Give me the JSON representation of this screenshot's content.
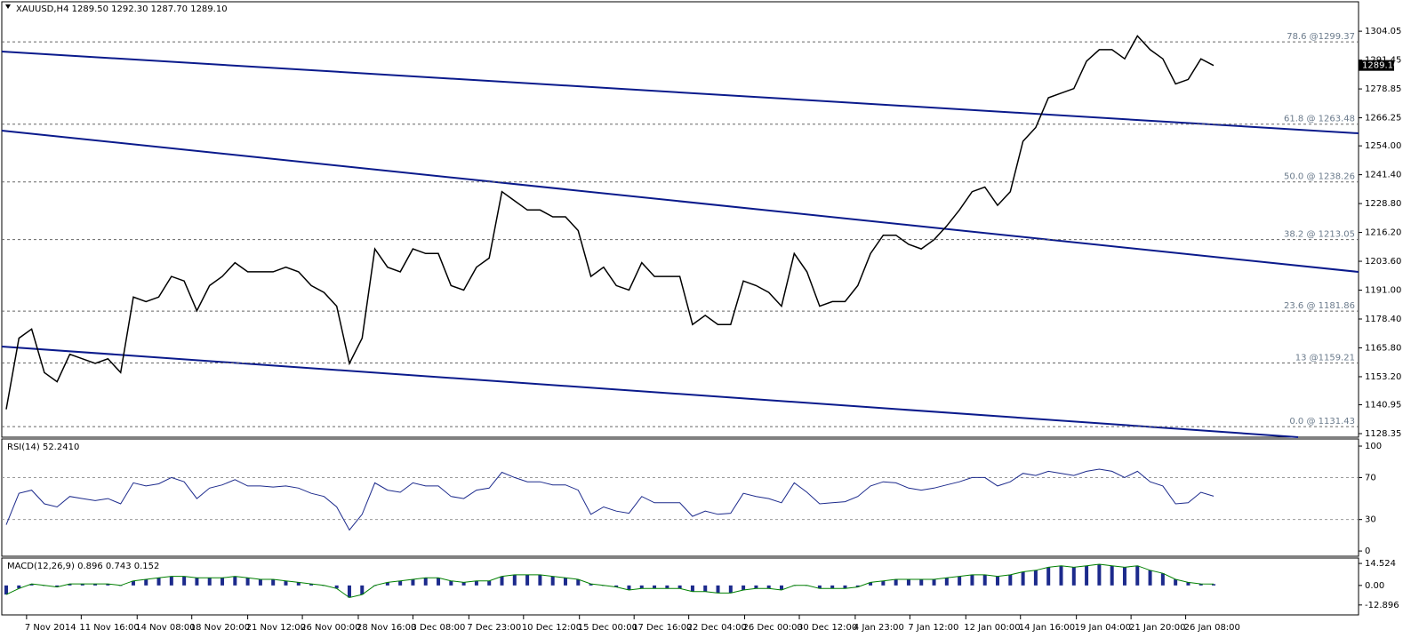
{
  "chart_data": [
    {
      "type": "line",
      "panel": "price",
      "title": "XAUUSD,H4  1289.50 1292.30 1287.70 1289.10",
      "color": "#000000",
      "xlim": [
        -0.35,
        106.4
      ],
      "xticks": [
        {
          "value": 1.6,
          "label": "7 Nov 2014"
        },
        {
          "value": 5.9,
          "label": "11 Nov 16:00"
        },
        {
          "value": 10.3,
          "label": "14 Nov 08:00"
        },
        {
          "value": 14.6,
          "label": "18 Nov 20:00"
        },
        {
          "value": 19.0,
          "label": "21 Nov 12:00"
        },
        {
          "value": 23.3,
          "label": "26 Nov 00:00"
        },
        {
          "value": 27.7,
          "label": "28 Nov 16:00"
        },
        {
          "value": 32.0,
          "label": "3 Dec 08:00"
        },
        {
          "value": 36.4,
          "label": "7 Dec 23:00"
        },
        {
          "value": 40.7,
          "label": "10 Dec 12:00"
        },
        {
          "value": 45.1,
          "label": "15 Dec 00:00"
        },
        {
          "value": 49.4,
          "label": "17 Dec 16:00"
        },
        {
          "value": 53.7,
          "label": "22 Dec 04:00"
        },
        {
          "value": 58.1,
          "label": "26 Dec 00:00"
        },
        {
          "value": 62.4,
          "label": "30 Dec 12:00"
        },
        {
          "value": 66.8,
          "label": "4 Jan 23:00"
        },
        {
          "value": 71.1,
          "label": "7 Jan 12:00"
        },
        {
          "value": 75.5,
          "label": "12 Jan 00:00"
        },
        {
          "value": 79.8,
          "label": "14 Jan 16:00"
        },
        {
          "value": 84.2,
          "label": "19 Jan 04:00"
        },
        {
          "value": 88.5,
          "label": "21 Jan 20:00"
        },
        {
          "value": 92.8,
          "label": "26 Jan 08:00"
        }
      ],
      "ylim": [
        1126.8,
        1316.9
      ],
      "yticks": [
        1304.05,
        1291.45,
        1278.85,
        1266.25,
        {
          "value": 1254,
          "label": "1254.00"
        },
        {
          "value": 1241.4,
          "label": "1241.40"
        },
        {
          "value": 1228.8,
          "label": "1228.80"
        },
        {
          "value": 1216.2,
          "label": "1216.20"
        },
        {
          "value": 1203.6,
          "label": "1203.60"
        },
        {
          "value": 1191,
          "label": "1191.00"
        },
        {
          "value": 1178.4,
          "label": "1178.40"
        },
        {
          "value": 1165.8,
          "label": "1165.80"
        },
        {
          "value": 1153.2,
          "label": "1153.20"
        },
        1140.95,
        1128.35
      ],
      "current_price": {
        "value": 1289.1,
        "label": "1289.10"
      },
      "levels": [
        {
          "label": "78.6 @1299.37",
          "value": 1299.37
        },
        {
          "label": "61.8 @ 1263.48",
          "value": 1263.48
        },
        {
          "label": "50.0 @ 1238.26",
          "value": 1238.26
        },
        {
          "label": "38.2 @ 1213.05",
          "value": 1213.05
        },
        {
          "label": "23.6 @ 1181.86",
          "value": 1181.86
        },
        {
          "label": "13 @1159.21",
          "value": 1159.21
        },
        {
          "label": "0.0 @ 1131.43",
          "value": 1131.43
        }
      ],
      "values": [
        1139,
        1170,
        1174,
        1155,
        1151,
        1163,
        1161,
        1159,
        1161,
        1155,
        1188,
        1186,
        1188,
        1197,
        1195,
        1182,
        1193,
        1197,
        1203,
        1199,
        1199,
        1199,
        1201,
        1199,
        1193,
        1190,
        1184,
        1159,
        1170,
        1209,
        1201,
        1199,
        1209,
        1207,
        1207,
        1193,
        1191,
        1201,
        1205,
        1234,
        1230,
        1226,
        1226,
        1223,
        1223,
        1217,
        1197,
        1201,
        1193,
        1191,
        1203,
        1197,
        1197,
        1197,
        1176,
        1180,
        1176,
        1176,
        1195,
        1193,
        1190,
        1184,
        1207,
        1199,
        1184,
        1186,
        1186,
        1193,
        1207,
        1215,
        1215,
        1211,
        1209,
        1213,
        1219,
        1226,
        1234,
        1236,
        1228,
        1234,
        1256,
        1262,
        1275,
        1277,
        1279,
        1291,
        1296,
        1296,
        1292,
        1302,
        1296,
        1292,
        1281,
        1283,
        1292,
        1289.1
      ]
    },
    {
      "type": "line",
      "panel": "rsi",
      "title": "RSI(14) 52.2410",
      "color": "#1c2a8c",
      "ylim": [
        -5,
        106.8
      ],
      "yticks": [
        100,
        70,
        30,
        0
      ],
      "levels": [
        70,
        30
      ],
      "values": [
        25,
        55,
        58,
        45,
        42,
        52,
        50,
        48,
        50,
        45,
        65,
        62,
        64,
        70,
        66,
        50,
        60,
        63,
        68,
        62,
        62,
        61,
        62,
        60,
        55,
        52,
        42,
        20,
        35,
        65,
        58,
        56,
        65,
        62,
        62,
        52,
        50,
        58,
        60,
        75,
        70,
        66,
        66,
        63,
        63,
        58,
        35,
        42,
        38,
        36,
        52,
        46,
        46,
        46,
        33,
        38,
        35,
        36,
        55,
        52,
        50,
        46,
        65,
        56,
        45,
        46,
        47,
        52,
        62,
        66,
        65,
        60,
        58,
        60,
        63,
        66,
        70,
        70,
        62,
        66,
        74,
        72,
        76,
        74,
        72,
        76,
        78,
        76,
        70,
        76,
        66,
        62,
        45,
        46,
        56,
        52.241
      ]
    },
    {
      "type": "histogram-line",
      "panel": "macd",
      "title": "MACD(12,26,9) 0.896 0.743 0.152",
      "color": "#1c2a8c",
      "line_color": "#008000",
      "ylim": [
        -19.45,
        18.1
      ],
      "yticks": [
        14.524,
        {
          "value": 0,
          "label": "0.00"
        },
        -12.896
      ],
      "values": [
        -6,
        -2,
        1,
        0,
        -1,
        1,
        1,
        1,
        1,
        0,
        3,
        4,
        5,
        6,
        6,
        5,
        5,
        5,
        6,
        5,
        4,
        4,
        3,
        2,
        1,
        0,
        -2,
        -8,
        -6,
        0,
        2,
        3,
        4,
        5,
        5,
        3,
        2,
        3,
        3,
        6,
        7,
        7,
        7,
        6,
        5,
        4,
        1,
        0,
        -1,
        -3,
        -2,
        -2,
        -2,
        -2,
        -4,
        -4,
        -5,
        -5,
        -3,
        -2,
        -2,
        -3,
        0,
        0,
        -2,
        -2,
        -2,
        -1,
        2,
        3,
        4,
        4,
        4,
        4,
        5,
        6,
        7,
        7,
        6,
        7,
        9,
        10,
        12,
        13,
        12,
        13,
        14,
        13,
        12,
        13,
        10,
        8,
        4,
        2,
        1,
        0.896
      ]
    }
  ]
}
